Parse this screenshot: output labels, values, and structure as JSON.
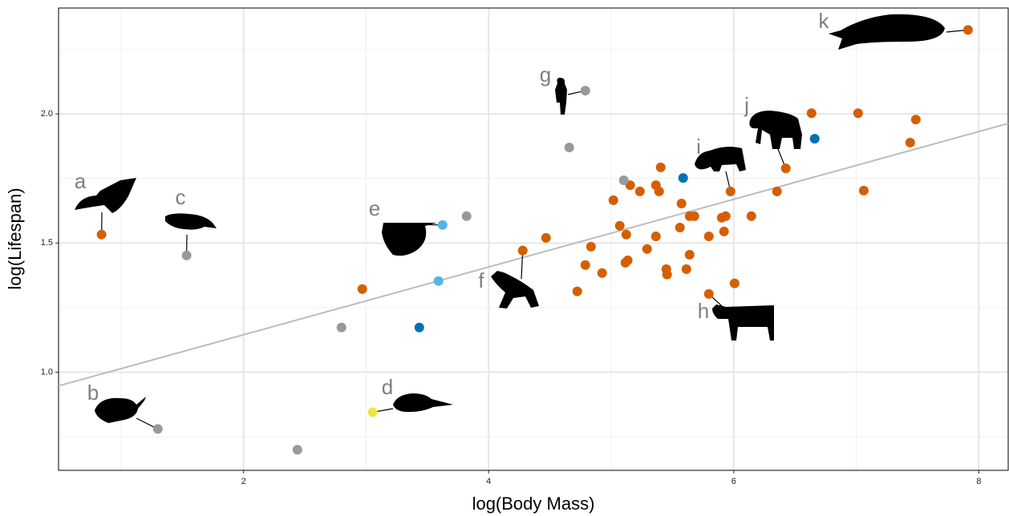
{
  "chart_data": {
    "type": "scatter",
    "xlabel": "log(Body Mass)",
    "ylabel": "log(Lifespan)",
    "xlim": [
      0.49,
      8.24
    ],
    "ylim": [
      0.62,
      2.41
    ],
    "xticks": [
      2,
      4,
      6,
      8
    ],
    "yticks": [
      {
        "value": 1,
        "label": "1.0"
      },
      {
        "value": 1.5,
        "label": "1.5"
      },
      {
        "value": 2,
        "label": "2.0"
      }
    ],
    "xminor": [
      1,
      3,
      5,
      7
    ],
    "yminor": [
      0.75,
      1.25,
      1.75,
      2.25
    ],
    "grid": true,
    "fit_line": {
      "color": "#bbbbbb",
      "x": [
        0.49,
        8.24
      ],
      "values": [
        0.947,
        1.963
      ]
    },
    "series": [
      {
        "color": "#d55e00",
        "x": [
          0.841,
          2.969,
          4.468,
          4.278,
          4.723,
          4.835,
          4.789,
          4.926,
          5.018,
          5.07,
          5.123,
          5.155,
          5.234,
          5.116,
          5.135,
          5.293,
          5.365,
          5.365,
          5.391,
          5.404,
          5.45,
          5.456,
          5.561,
          5.574,
          5.614,
          5.64,
          5.679,
          5.64,
          5.797,
          5.797,
          5.902,
          5.935,
          5.921,
          5.974,
          6.007,
          6.144,
          6.353,
          6.425,
          6.635,
          7.015,
          7.061,
          7.44,
          7.486,
          7.912
        ],
        "values": [
          1.533,
          1.322,
          1.52,
          1.471,
          1.313,
          1.486,
          1.415,
          1.384,
          1.666,
          1.567,
          1.533,
          1.724,
          1.7,
          1.424,
          1.433,
          1.477,
          1.526,
          1.724,
          1.7,
          1.793,
          1.399,
          1.378,
          1.56,
          1.653,
          1.399,
          1.604,
          1.604,
          1.455,
          1.526,
          1.303,
          1.598,
          1.604,
          1.545,
          1.7,
          1.344,
          1.604,
          1.7,
          1.789,
          2.003,
          2.003,
          1.703,
          1.889,
          1.978,
          2.325
        ]
      },
      {
        "color": "#999999",
        "x": [
          1.3,
          1.535,
          2.439,
          2.799,
          3.82,
          4.658,
          4.789,
          5.103
        ],
        "values": [
          0.78,
          1.452,
          0.7,
          1.173,
          1.604,
          1.87,
          2.09,
          1.743
        ]
      },
      {
        "color": "#56b4e9",
        "x": [
          3.624,
          3.591
        ],
        "values": [
          1.57,
          1.353
        ]
      },
      {
        "color": "#0072b2",
        "x": [
          3.434,
          5.587,
          6.661
        ],
        "values": [
          1.173,
          1.752,
          1.904
        ]
      },
      {
        "color": "#f0e442",
        "x": [
          3.054
        ],
        "values": [
          0.845
        ]
      }
    ],
    "annotations": [
      "a",
      "b",
      "c",
      "d",
      "e",
      "f",
      "g",
      "h",
      "i",
      "j",
      "k"
    ]
  }
}
